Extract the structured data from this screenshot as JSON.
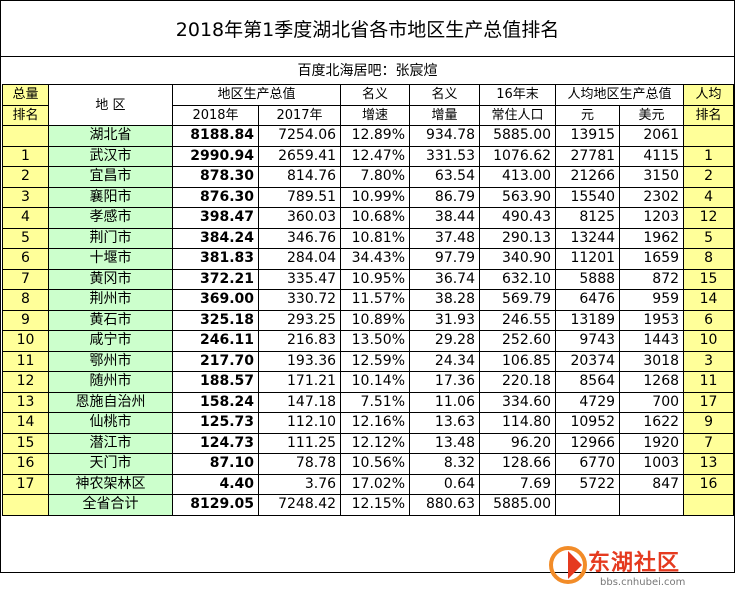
{
  "title": "2018年第1季度湖北省各市地区生产总值排名",
  "source": "百度北海居吧：张宸煊",
  "headers": {
    "rank_top": "总量",
    "rank_bottom": "排名",
    "region": "地 区",
    "gdp_group": "地区生产总值",
    "gdp_2018": "2018年",
    "gdp_2017": "2017年",
    "growth_top": "名义",
    "growth_bottom": "增速",
    "increase_top": "名义",
    "increase_bottom": "增量",
    "pop_top": "16年末",
    "pop_bottom": "常住人口",
    "percap_group": "人均地区生产总值",
    "percap_yuan": "元",
    "percap_usd": "美元",
    "percap_rank_top": "人均",
    "percap_rank_bottom": "排名"
  },
  "rows": [
    {
      "rank": "",
      "region": "湖北省",
      "gdp2018": "8188.84",
      "gdp2017": "7254.06",
      "growth": "12.89%",
      "increase": "934.78",
      "pop": "5885.00",
      "yuan": "13915",
      "usd": "2061",
      "prank": ""
    },
    {
      "rank": "1",
      "region": "武汉市",
      "gdp2018": "2990.94",
      "gdp2017": "2659.41",
      "growth": "12.47%",
      "increase": "331.53",
      "pop": "1076.62",
      "yuan": "27781",
      "usd": "4115",
      "prank": "1"
    },
    {
      "rank": "2",
      "region": "宜昌市",
      "gdp2018": "878.30",
      "gdp2017": "814.76",
      "growth": "7.80%",
      "increase": "63.54",
      "pop": "413.00",
      "yuan": "21266",
      "usd": "3150",
      "prank": "2"
    },
    {
      "rank": "3",
      "region": "襄阳市",
      "gdp2018": "876.30",
      "gdp2017": "789.51",
      "growth": "10.99%",
      "increase": "86.79",
      "pop": "563.90",
      "yuan": "15540",
      "usd": "2302",
      "prank": "4"
    },
    {
      "rank": "4",
      "region": "孝感市",
      "gdp2018": "398.47",
      "gdp2017": "360.03",
      "growth": "10.68%",
      "increase": "38.44",
      "pop": "490.43",
      "yuan": "8125",
      "usd": "1203",
      "prank": "12"
    },
    {
      "rank": "5",
      "region": "荆门市",
      "gdp2018": "384.24",
      "gdp2017": "346.76",
      "growth": "10.81%",
      "increase": "37.48",
      "pop": "290.13",
      "yuan": "13244",
      "usd": "1962",
      "prank": "5"
    },
    {
      "rank": "6",
      "region": "十堰市",
      "gdp2018": "381.83",
      "gdp2017": "284.04",
      "growth": "34.43%",
      "increase": "97.79",
      "pop": "340.90",
      "yuan": "11201",
      "usd": "1659",
      "prank": "8"
    },
    {
      "rank": "7",
      "region": "黄冈市",
      "gdp2018": "372.21",
      "gdp2017": "335.47",
      "growth": "10.95%",
      "increase": "36.74",
      "pop": "632.10",
      "yuan": "5888",
      "usd": "872",
      "prank": "15"
    },
    {
      "rank": "8",
      "region": "荆州市",
      "gdp2018": "369.00",
      "gdp2017": "330.72",
      "growth": "11.57%",
      "increase": "38.28",
      "pop": "569.79",
      "yuan": "6476",
      "usd": "959",
      "prank": "14"
    },
    {
      "rank": "9",
      "region": "黄石市",
      "gdp2018": "325.18",
      "gdp2017": "293.25",
      "growth": "10.89%",
      "increase": "31.93",
      "pop": "246.55",
      "yuan": "13189",
      "usd": "1953",
      "prank": "6"
    },
    {
      "rank": "10",
      "region": "咸宁市",
      "gdp2018": "246.11",
      "gdp2017": "216.83",
      "growth": "13.50%",
      "increase": "29.28",
      "pop": "252.60",
      "yuan": "9743",
      "usd": "1443",
      "prank": "10"
    },
    {
      "rank": "11",
      "region": "鄂州市",
      "gdp2018": "217.70",
      "gdp2017": "193.36",
      "growth": "12.59%",
      "increase": "24.34",
      "pop": "106.85",
      "yuan": "20374",
      "usd": "3018",
      "prank": "3"
    },
    {
      "rank": "12",
      "region": "随州市",
      "gdp2018": "188.57",
      "gdp2017": "171.21",
      "growth": "10.14%",
      "increase": "17.36",
      "pop": "220.18",
      "yuan": "8564",
      "usd": "1268",
      "prank": "11"
    },
    {
      "rank": "13",
      "region": "恩施自治州",
      "gdp2018": "158.24",
      "gdp2017": "147.18",
      "growth": "7.51%",
      "increase": "11.06",
      "pop": "334.60",
      "yuan": "4729",
      "usd": "700",
      "prank": "17"
    },
    {
      "rank": "14",
      "region": "仙桃市",
      "gdp2018": "125.73",
      "gdp2017": "112.10",
      "growth": "12.16%",
      "increase": "13.63",
      "pop": "114.80",
      "yuan": "10952",
      "usd": "1622",
      "prank": "9"
    },
    {
      "rank": "15",
      "region": "潜江市",
      "gdp2018": "124.73",
      "gdp2017": "111.25",
      "growth": "12.12%",
      "increase": "13.48",
      "pop": "96.20",
      "yuan": "12966",
      "usd": "1920",
      "prank": "7"
    },
    {
      "rank": "16",
      "region": "天门市",
      "gdp2018": "87.10",
      "gdp2017": "78.78",
      "growth": "10.56%",
      "increase": "8.32",
      "pop": "128.66",
      "yuan": "6770",
      "usd": "1003",
      "prank": "13"
    },
    {
      "rank": "17",
      "region": "神农架林区",
      "gdp2018": "4.40",
      "gdp2017": "3.76",
      "growth": "17.02%",
      "increase": "0.64",
      "pop": "7.69",
      "yuan": "5722",
      "usd": "847",
      "prank": "16"
    },
    {
      "rank": "",
      "region": "全省合计",
      "gdp2018": "8129.05",
      "gdp2017": "7248.42",
      "growth": "12.15%",
      "increase": "880.63",
      "pop": "5885.00",
      "yuan": "",
      "usd": "",
      "prank": ""
    }
  ],
  "watermark": {
    "brand": "东湖社区",
    "url": "bbs.cnhubei.com",
    "icon": "brand-logo-icon"
  },
  "colors": {
    "rank_bg": "#ffff99",
    "region_bg": "#ccffcc"
  }
}
